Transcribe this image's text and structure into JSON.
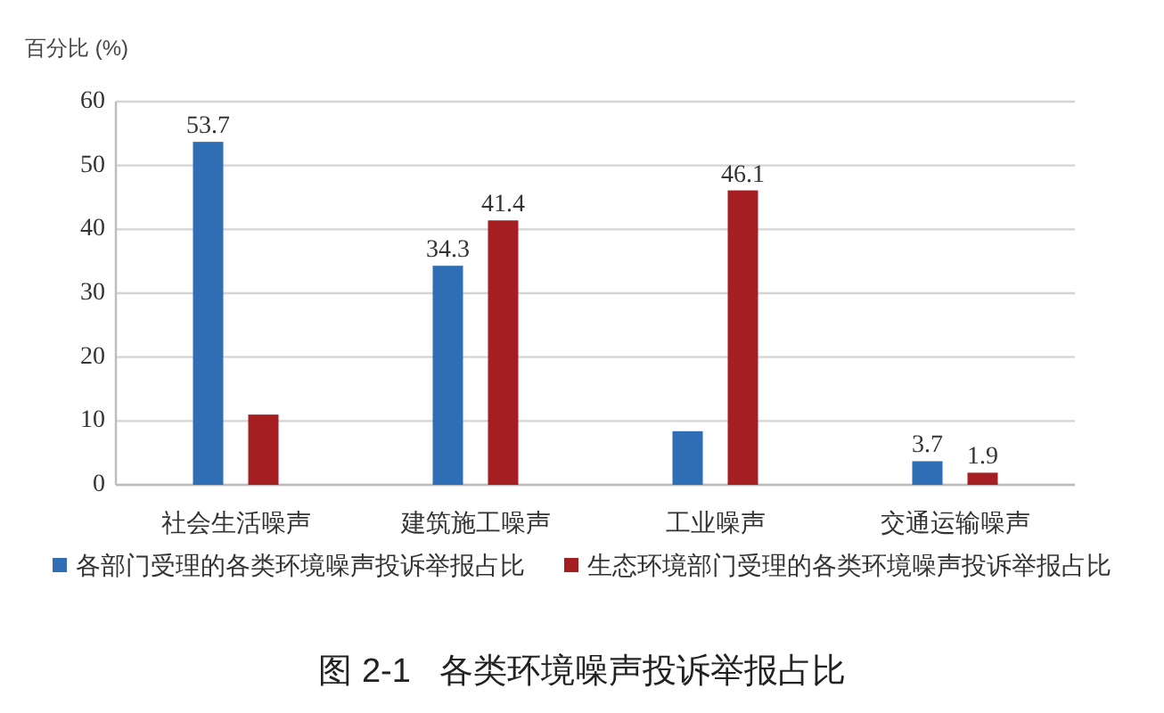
{
  "chart_data": {
    "type": "bar",
    "ylabel": "百分比 (%)",
    "categories": [
      "社会生活噪声",
      "建筑施工噪声",
      "工业噪声",
      "交通运输噪声"
    ],
    "series": [
      {
        "name": "各部门受理的各类环境噪声投诉举报占比",
        "color": "#2f6db5",
        "values": [
          53.7,
          34.3,
          8.4,
          3.7
        ],
        "value_labels": [
          "53.7",
          "34.3",
          null,
          "3.7"
        ]
      },
      {
        "name": "生态环境部门受理的各类环境噪声投诉举报占比",
        "color": "#a51e22",
        "values": [
          11,
          41.4,
          46.1,
          1.9
        ],
        "value_labels": [
          null,
          "41.4",
          "46.1",
          "1.9"
        ]
      }
    ],
    "ylim": [
      0,
      60
    ],
    "yticks": [
      0,
      10,
      20,
      30,
      40,
      50,
      60
    ],
    "grid": "y",
    "legend": "bottom",
    "annotations": [
      "图 2-1   各类环境噪声投诉举报占比"
    ]
  }
}
